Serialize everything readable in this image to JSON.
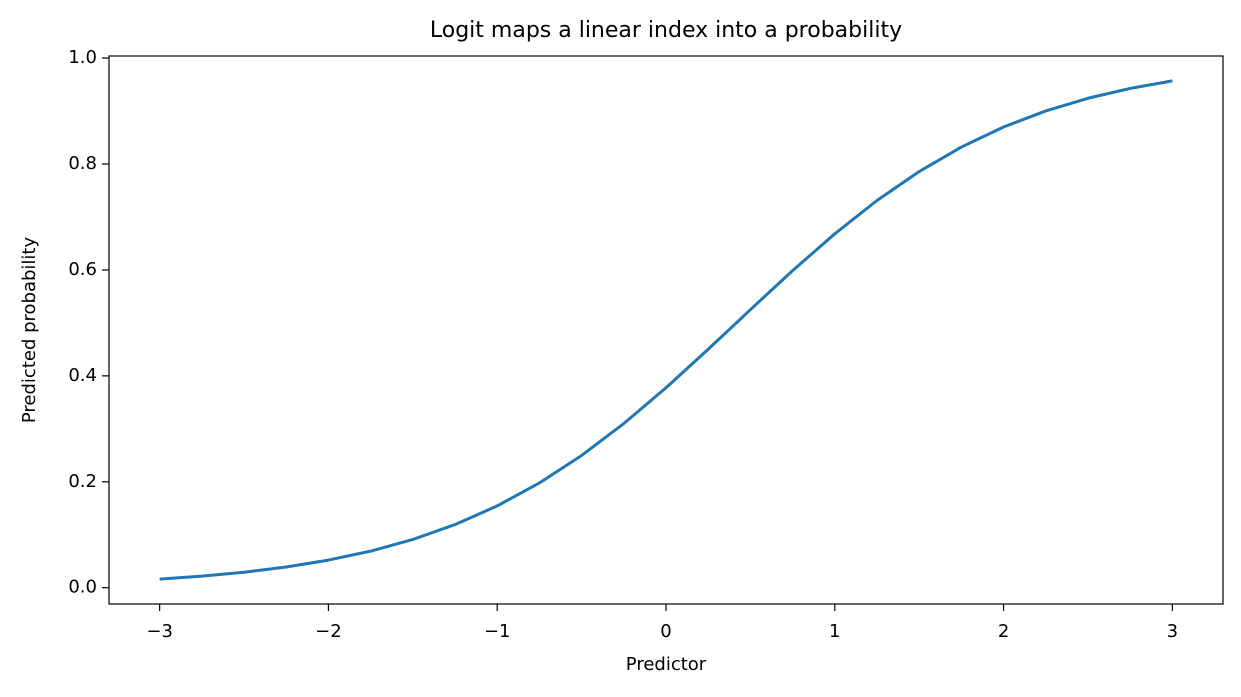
{
  "chart_data": {
    "type": "line",
    "title": "Logit maps a linear index into a probability",
    "x_label": "Predictor",
    "y_label": "Predicted probability",
    "x": [
      -3,
      -2.75,
      -2.5,
      -2.25,
      -2,
      -1.75,
      -1.5,
      -1.25,
      -1,
      -0.75,
      -0.5,
      -0.25,
      0,
      0.25,
      0.5,
      0.75,
      1,
      1.25,
      1.5,
      1.75,
      2,
      2.25,
      2.5,
      2.75,
      3
    ],
    "series": [
      {
        "color": "#1f77b4",
        "values": [
          0.0163,
          0.0219,
          0.0293,
          0.0392,
          0.0522,
          0.0691,
          0.0911,
          0.1192,
          0.1545,
          0.1978,
          0.2497,
          0.31,
          0.3775,
          0.4502,
          0.525,
          0.5987,
          0.6682,
          0.7311,
          0.7858,
          0.832,
          0.8699,
          0.9002,
          0.9241,
          0.9427,
          0.9569
        ]
      }
    ],
    "xlim": [
      -3.3,
      3.3
    ],
    "ylim": [
      -0.0307,
      1.0039
    ],
    "xticks": [
      {
        "value": -3,
        "label": "−3"
      },
      {
        "value": -2,
        "label": "−2"
      },
      {
        "value": -1,
        "label": "−1"
      },
      0,
      1,
      2,
      3
    ],
    "yticks": [
      {
        "value": 0,
        "label": "0.0"
      },
      {
        "value": 0.2,
        "label": "0.2"
      },
      {
        "value": 0.4,
        "label": "0.4"
      },
      {
        "value": 0.6,
        "label": "0.6"
      },
      {
        "value": 0.8,
        "label": "0.8"
      },
      {
        "value": 1,
        "label": "1.0"
      }
    ],
    "grid": false
  }
}
